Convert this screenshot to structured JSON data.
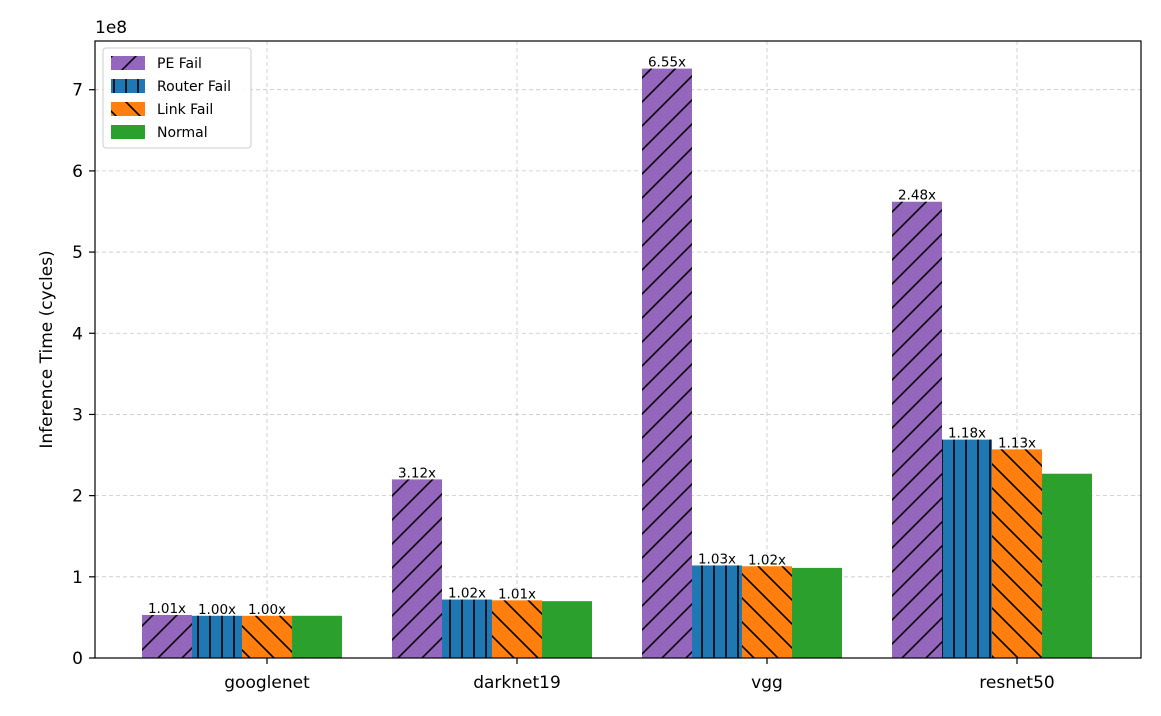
{
  "chart_data": {
    "type": "bar",
    "categories": [
      "googlenet",
      "darknet19",
      "vgg",
      "resnet50"
    ],
    "ylabel": "Inference Time (cycles)",
    "xlabel": "",
    "title": "",
    "y_scale_label": "1e8",
    "ylim": [
      0,
      7.6
    ],
    "y_ticks": [
      0,
      1,
      2,
      3,
      4,
      5,
      6,
      7
    ],
    "grid": true,
    "legend_position": "top-left",
    "series": [
      {
        "name": "PE Fail",
        "color": "#9467bd",
        "hatch": "forward-diagonal",
        "values": [
          0.53,
          2.2,
          7.26,
          5.62
        ],
        "labels": [
          "1.01x",
          "3.12x",
          "6.55x",
          "2.48x"
        ]
      },
      {
        "name": "Router Fail",
        "color": "#1f77b4",
        "hatch": "vertical",
        "values": [
          0.52,
          0.72,
          1.14,
          2.69
        ],
        "labels": [
          "1.00x",
          "1.02x",
          "1.03x",
          "1.18x"
        ]
      },
      {
        "name": "Link Fail",
        "color": "#ff7f0e",
        "hatch": "back-diagonal",
        "values": [
          0.52,
          0.71,
          1.13,
          2.57
        ],
        "labels": [
          "1.00x",
          "1.01x",
          "1.02x",
          "1.13x"
        ]
      },
      {
        "name": "Normal",
        "color": "#2ca02c",
        "hatch": "none",
        "values": [
          0.52,
          0.7,
          1.11,
          2.27
        ],
        "labels": [
          "",
          "",
          "",
          ""
        ]
      }
    ]
  }
}
